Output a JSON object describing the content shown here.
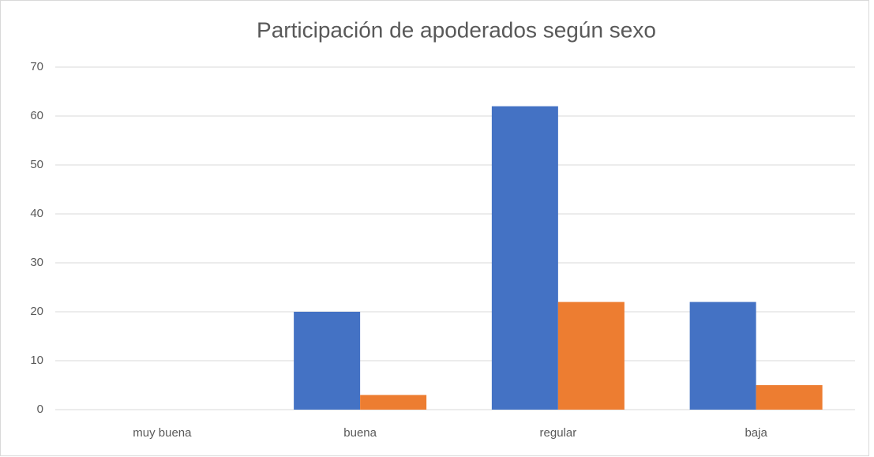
{
  "chart_data": {
    "type": "bar",
    "title": "Participación de apoderados según sexo",
    "categories": [
      "muy buena",
      "buena",
      "regular",
      "baja"
    ],
    "series": [
      {
        "color": "#4472c4",
        "values": [
          0,
          20,
          62,
          22
        ]
      },
      {
        "color": "#ed7d31",
        "values": [
          0,
          3,
          22,
          5
        ]
      }
    ],
    "ylim": [
      0,
      70
    ],
    "yticks": [
      0,
      10,
      20,
      30,
      40,
      50,
      60,
      70
    ],
    "grid": true
  }
}
